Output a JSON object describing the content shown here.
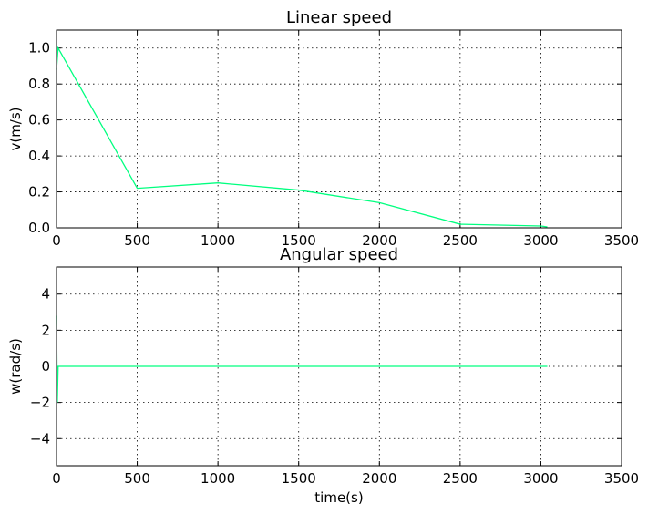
{
  "chart_data": [
    {
      "type": "line",
      "title": "Linear speed",
      "xlabel": "",
      "ylabel": "v(m/s)",
      "xlim": [
        0,
        3500
      ],
      "ylim": [
        0,
        1.1
      ],
      "xticks": [
        "0",
        "500",
        "1000",
        "1500",
        "2000",
        "2500",
        "3000",
        "3500"
      ],
      "yticks": [
        "0.0",
        "0.2",
        "0.4",
        "0.6",
        "0.8",
        "1.0"
      ],
      "grid": true,
      "color": "#00ff7f",
      "series": [
        {
          "x": [
            0,
            10,
            500,
            1000,
            1500,
            2000,
            2500,
            3000,
            3040
          ],
          "y": [
            0.88,
            1.0,
            0.22,
            0.25,
            0.21,
            0.14,
            0.02,
            0.01,
            0.005
          ]
        }
      ]
    },
    {
      "type": "line",
      "title": "Angular speed",
      "xlabel": "time(s)",
      "ylabel": "w(rad/s)",
      "xlim": [
        0,
        3500
      ],
      "ylim": [
        -5.5,
        5.5
      ],
      "xticks": [
        "0",
        "500",
        "1000",
        "1500",
        "2000",
        "2500",
        "3000",
        "3500"
      ],
      "yticks": [
        "−4",
        "−2",
        "0",
        "2",
        "4"
      ],
      "grid": true,
      "color": "#00ff7f",
      "series": [
        {
          "x": [
            0,
            5,
            10,
            3040
          ],
          "y": [
            2.8,
            -2.0,
            0.0,
            0.0
          ]
        }
      ]
    }
  ]
}
